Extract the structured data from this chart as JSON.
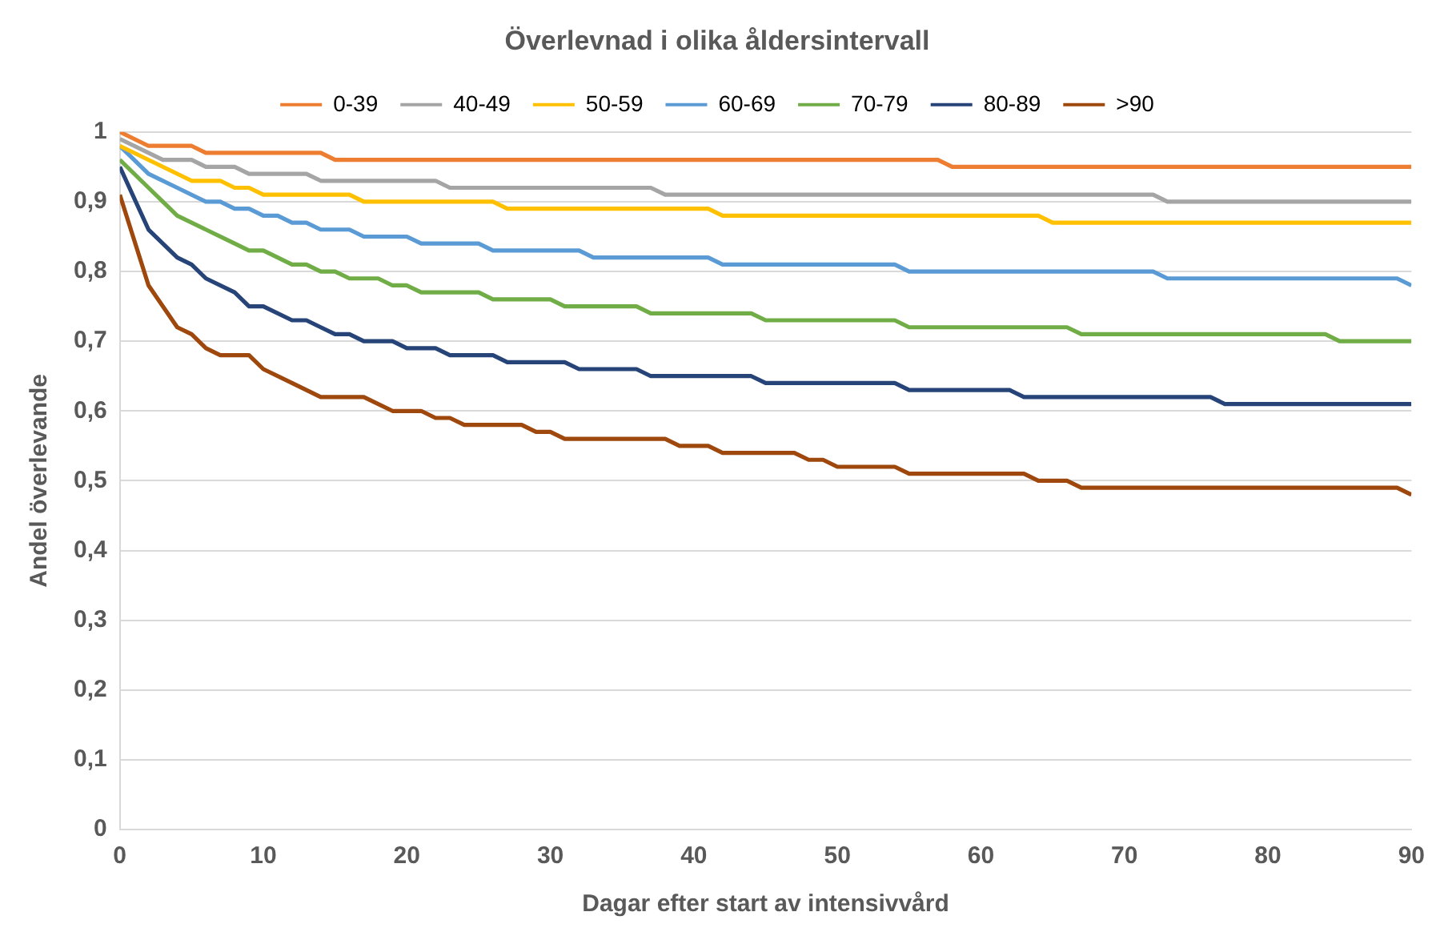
{
  "chart_data": {
    "type": "line",
    "title": "Överlevnad i olika åldersintervall",
    "xlabel": "Dagar efter start av intensivvård",
    "ylabel": "Andel överlevande",
    "xlim": [
      0,
      90
    ],
    "xticks": [
      0,
      10,
      20,
      30,
      40,
      50,
      60,
      70,
      80,
      90
    ],
    "ylim": [
      0,
      1
    ],
    "yticks": [
      0,
      {
        "value": 0.1,
        "label": "0,1"
      },
      {
        "value": 0.2,
        "label": "0,2"
      },
      {
        "value": 0.3,
        "label": "0,3"
      },
      {
        "value": 0.4,
        "label": "0,4"
      },
      {
        "value": 0.5,
        "label": "0,5"
      },
      {
        "value": 0.6,
        "label": "0,6"
      },
      {
        "value": 0.7,
        "label": "0,7"
      },
      {
        "value": 0.8,
        "label": "0,8"
      },
      {
        "value": 0.9,
        "label": "0,9"
      },
      1
    ],
    "grid": "y",
    "legend": "top",
    "marker": "none",
    "line_style": "solid",
    "series": [
      {
        "name": "0-39",
        "color": "#ed7d31",
        "x": [
          0,
          2,
          5,
          6,
          14,
          15,
          57,
          58,
          90
        ],
        "values": [
          1,
          0.98,
          0.98,
          0.97,
          0.97,
          0.96,
          0.96,
          0.95,
          0.95
        ]
      },
      {
        "name": "40-49",
        "color": "#a5a5a5",
        "x": [
          0,
          3,
          5,
          6,
          8,
          9,
          13,
          14,
          22,
          23,
          37,
          38,
          72,
          73,
          90
        ],
        "values": [
          0.99,
          0.96,
          0.96,
          0.95,
          0.95,
          0.94,
          0.94,
          0.93,
          0.93,
          0.92,
          0.92,
          0.91,
          0.91,
          0.9,
          0.9
        ]
      },
      {
        "name": "50-59",
        "color": "#ffc000",
        "x": [
          0,
          5,
          7,
          8,
          9,
          10,
          16,
          17,
          26,
          27,
          41,
          42,
          64,
          65,
          90
        ],
        "values": [
          0.98,
          0.93,
          0.93,
          0.92,
          0.92,
          0.91,
          0.91,
          0.9,
          0.9,
          0.89,
          0.89,
          0.88,
          0.88,
          0.87,
          0.87
        ]
      },
      {
        "name": "60-69",
        "color": "#5b9bd5",
        "x": [
          0,
          2,
          4,
          6,
          7,
          8,
          9,
          10,
          11,
          12,
          13,
          14,
          16,
          17,
          20,
          21,
          25,
          26,
          32,
          33,
          41,
          42,
          54,
          55,
          72,
          73,
          89,
          90
        ],
        "values": [
          0.98,
          0.94,
          0.92,
          0.9,
          0.9,
          0.89,
          0.89,
          0.88,
          0.88,
          0.87,
          0.87,
          0.86,
          0.86,
          0.85,
          0.85,
          0.84,
          0.84,
          0.83,
          0.83,
          0.82,
          0.82,
          0.81,
          0.81,
          0.8,
          0.8,
          0.79,
          0.79,
          0.78
        ]
      },
      {
        "name": "70-79",
        "color": "#70ad47",
        "x": [
          0,
          2,
          4,
          6,
          8,
          9,
          10,
          12,
          13,
          14,
          15,
          16,
          18,
          19,
          20,
          21,
          25,
          26,
          30,
          31,
          36,
          37,
          44,
          45,
          54,
          55,
          66,
          67,
          84,
          85,
          90
        ],
        "values": [
          0.96,
          0.92,
          0.88,
          0.86,
          0.84,
          0.83,
          0.83,
          0.81,
          0.81,
          0.8,
          0.8,
          0.79,
          0.79,
          0.78,
          0.78,
          0.77,
          0.77,
          0.76,
          0.76,
          0.75,
          0.75,
          0.74,
          0.74,
          0.73,
          0.73,
          0.72,
          0.72,
          0.71,
          0.71,
          0.7,
          0.7
        ]
      },
      {
        "name": "80-89",
        "color": "#264478",
        "x": [
          0,
          2,
          4,
          5,
          6,
          8,
          9,
          10,
          12,
          13,
          14,
          15,
          16,
          17,
          19,
          20,
          22,
          23,
          26,
          27,
          31,
          32,
          36,
          37,
          44,
          45,
          54,
          55,
          62,
          63,
          76,
          77,
          90
        ],
        "values": [
          0.95,
          0.86,
          0.82,
          0.81,
          0.79,
          0.77,
          0.75,
          0.75,
          0.73,
          0.73,
          0.72,
          0.71,
          0.71,
          0.7,
          0.7,
          0.69,
          0.69,
          0.68,
          0.68,
          0.67,
          0.67,
          0.66,
          0.66,
          0.65,
          0.65,
          0.64,
          0.64,
          0.63,
          0.63,
          0.62,
          0.62,
          0.61,
          0.61
        ]
      },
      {
        "name": ">90",
        "color": "#9e480e",
        "x": [
          0,
          2,
          4,
          5,
          6,
          7,
          9,
          10,
          12,
          14,
          17,
          19,
          21,
          22,
          23,
          24,
          28,
          29,
          30,
          31,
          38,
          39,
          41,
          42,
          47,
          48,
          49,
          50,
          54,
          55,
          63,
          64,
          66,
          67,
          89,
          90
        ],
        "values": [
          0.91,
          0.78,
          0.72,
          0.71,
          0.69,
          0.68,
          0.68,
          0.66,
          0.64,
          0.62,
          0.62,
          0.6,
          0.6,
          0.59,
          0.59,
          0.58,
          0.58,
          0.57,
          0.57,
          0.56,
          0.56,
          0.55,
          0.55,
          0.54,
          0.54,
          0.53,
          0.53,
          0.52,
          0.52,
          0.51,
          0.51,
          0.5,
          0.5,
          0.49,
          0.49,
          0.48
        ]
      }
    ]
  }
}
